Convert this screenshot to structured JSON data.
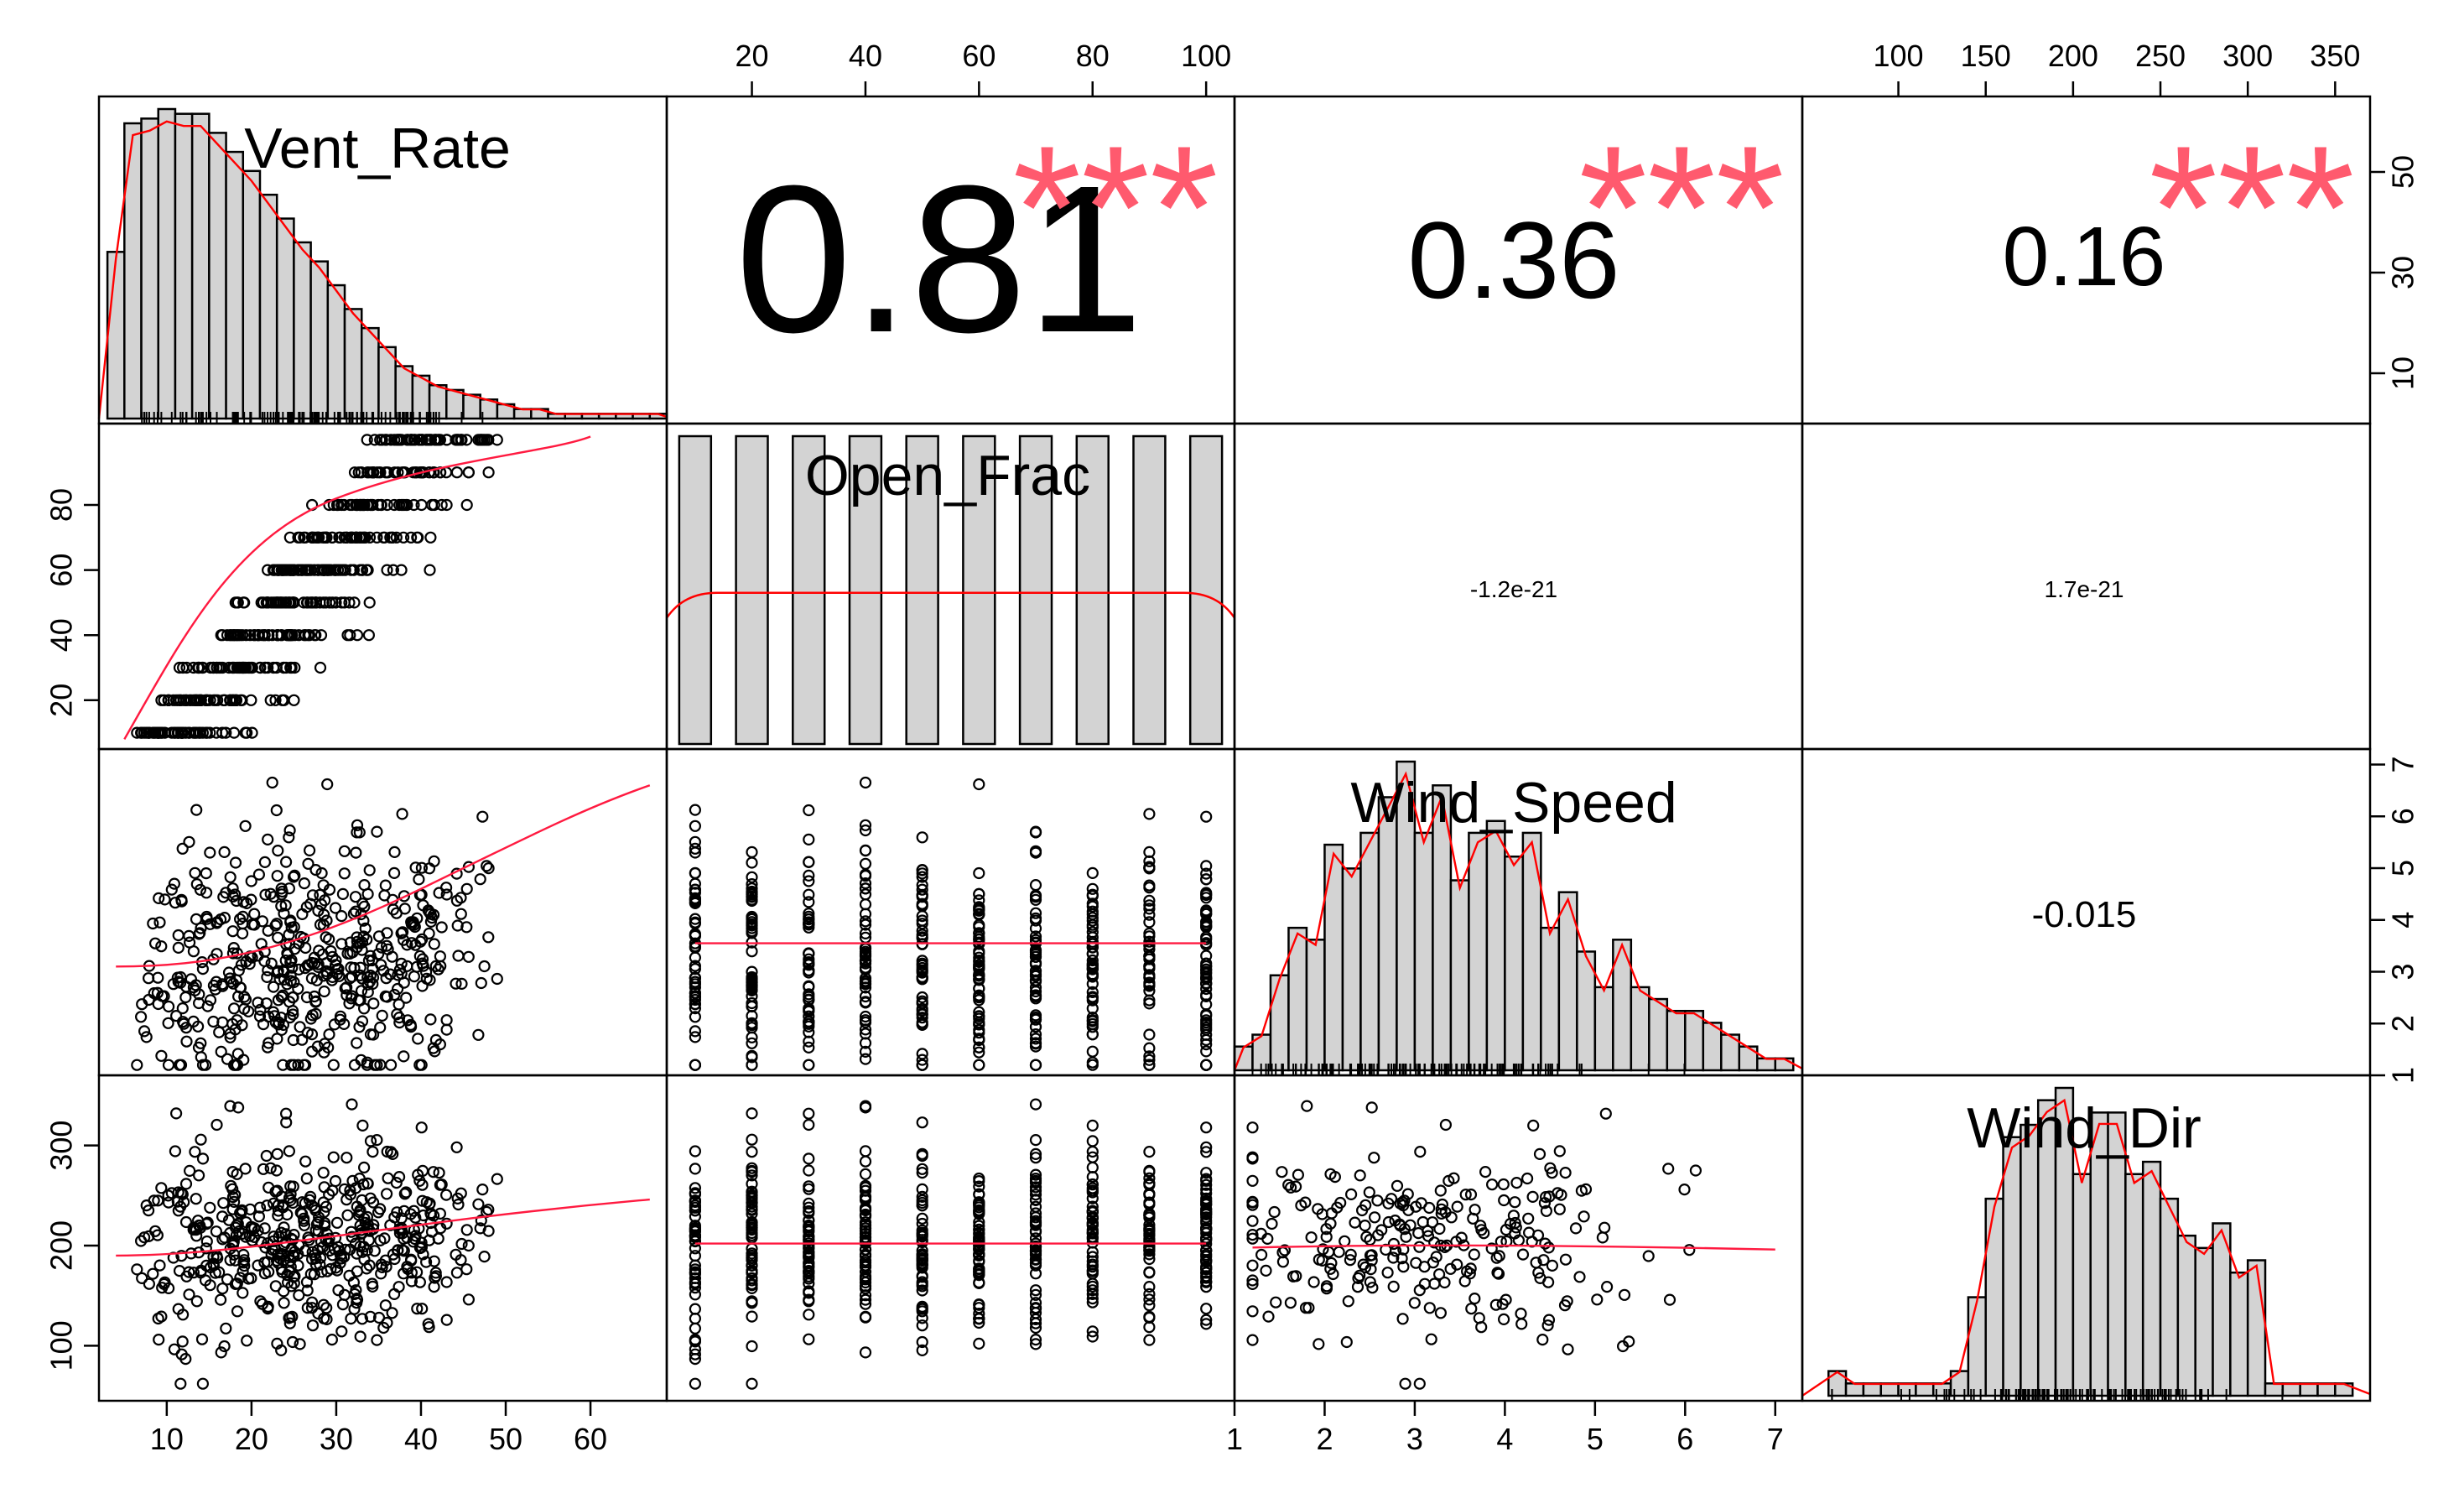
{
  "chart_data": {
    "type": "scatter",
    "variables": [
      "Vent_Rate",
      "Open_Frac",
      "Wind_Speed",
      "Wind_Dir"
    ],
    "ranges": {
      "Vent_Rate": [
        2,
        69
      ],
      "Open_Frac": [
        5,
        105
      ],
      "Wind_Speed": [
        1,
        7.3
      ],
      "Wind_Dir": [
        45,
        370
      ]
    },
    "axes": {
      "top": [
        {
          "var": "Open_Frac",
          "ticks": [
            "20",
            "40",
            "60",
            "80",
            "100"
          ]
        },
        {
          "var": "Wind_Dir",
          "ticks": [
            "100",
            "150",
            "200",
            "250",
            "300",
            "350"
          ]
        }
      ],
      "bottom": [
        {
          "var": "Vent_Rate",
          "ticks": [
            "10",
            "20",
            "30",
            "40",
            "50",
            "60"
          ]
        },
        {
          "var": "Wind_Speed",
          "ticks": [
            "1",
            "2",
            "3",
            "4",
            "5",
            "6",
            "7"
          ]
        }
      ],
      "left": [
        {
          "var": "Open_Frac",
          "ticks": [
            "20",
            "40",
            "60",
            "80"
          ]
        },
        {
          "var": "Wind_Dir",
          "ticks": [
            "100",
            "200",
            "300"
          ]
        }
      ],
      "right": [
        {
          "var": "Vent_Rate_count",
          "ticks": [
            "10",
            "30",
            "50"
          ],
          "range": [
            0,
            65
          ]
        },
        {
          "var": "Wind_Speed",
          "ticks": [
            "1",
            "2",
            "3",
            "4",
            "5",
            "6",
            "7"
          ]
        }
      ]
    },
    "correlations": [
      {
        "pair": [
          "Vent_Rate",
          "Open_Frac"
        ],
        "value": "0.81",
        "stars": "***"
      },
      {
        "pair": [
          "Vent_Rate",
          "Wind_Speed"
        ],
        "value": "0.36",
        "stars": "***"
      },
      {
        "pair": [
          "Vent_Rate",
          "Wind_Dir"
        ],
        "value": "0.16",
        "stars": "***"
      },
      {
        "pair": [
          "Open_Frac",
          "Wind_Speed"
        ],
        "value": "-1.2e-21",
        "stars": ""
      },
      {
        "pair": [
          "Open_Frac",
          "Wind_Dir"
        ],
        "value": "1.7e-21",
        "stars": ""
      },
      {
        "pair": [
          "Wind_Speed",
          "Wind_Dir"
        ],
        "value": "-0.015",
        "stars": ""
      }
    ],
    "histograms": {
      "Vent_Rate": {
        "start": 3,
        "width": 2,
        "counts": [
          35,
          62,
          63,
          65,
          64,
          64,
          60,
          56,
          52,
          47,
          42,
          37,
          33,
          28,
          23,
          19,
          15,
          11,
          9,
          7,
          6,
          5,
          4,
          3,
          2,
          2,
          1,
          1,
          1,
          1,
          1,
          1,
          1
        ]
      },
      "Open_Frac": {
        "start": 5,
        "width": 10,
        "counts": [
          1,
          1,
          1,
          1,
          1,
          1,
          1,
          1,
          1,
          1
        ]
      },
      "Wind_Speed": {
        "start": 1.0,
        "width": 0.2,
        "counts": [
          2,
          3,
          8,
          12,
          11,
          19,
          17,
          20,
          23,
          26,
          20,
          24,
          16,
          20,
          21,
          18,
          20,
          12,
          15,
          10,
          7,
          11,
          7,
          6,
          5,
          5,
          4,
          3,
          2,
          1,
          1
        ]
      },
      "Wind_Dir": {
        "start": 60,
        "width": 10,
        "counts": [
          2,
          1,
          1,
          1,
          1,
          1,
          1,
          2,
          8,
          16,
          21,
          22,
          24,
          25,
          18,
          23,
          23,
          18,
          19,
          16,
          13,
          12,
          14,
          10,
          11,
          1,
          1,
          1,
          1,
          1
        ]
      }
    }
  }
}
